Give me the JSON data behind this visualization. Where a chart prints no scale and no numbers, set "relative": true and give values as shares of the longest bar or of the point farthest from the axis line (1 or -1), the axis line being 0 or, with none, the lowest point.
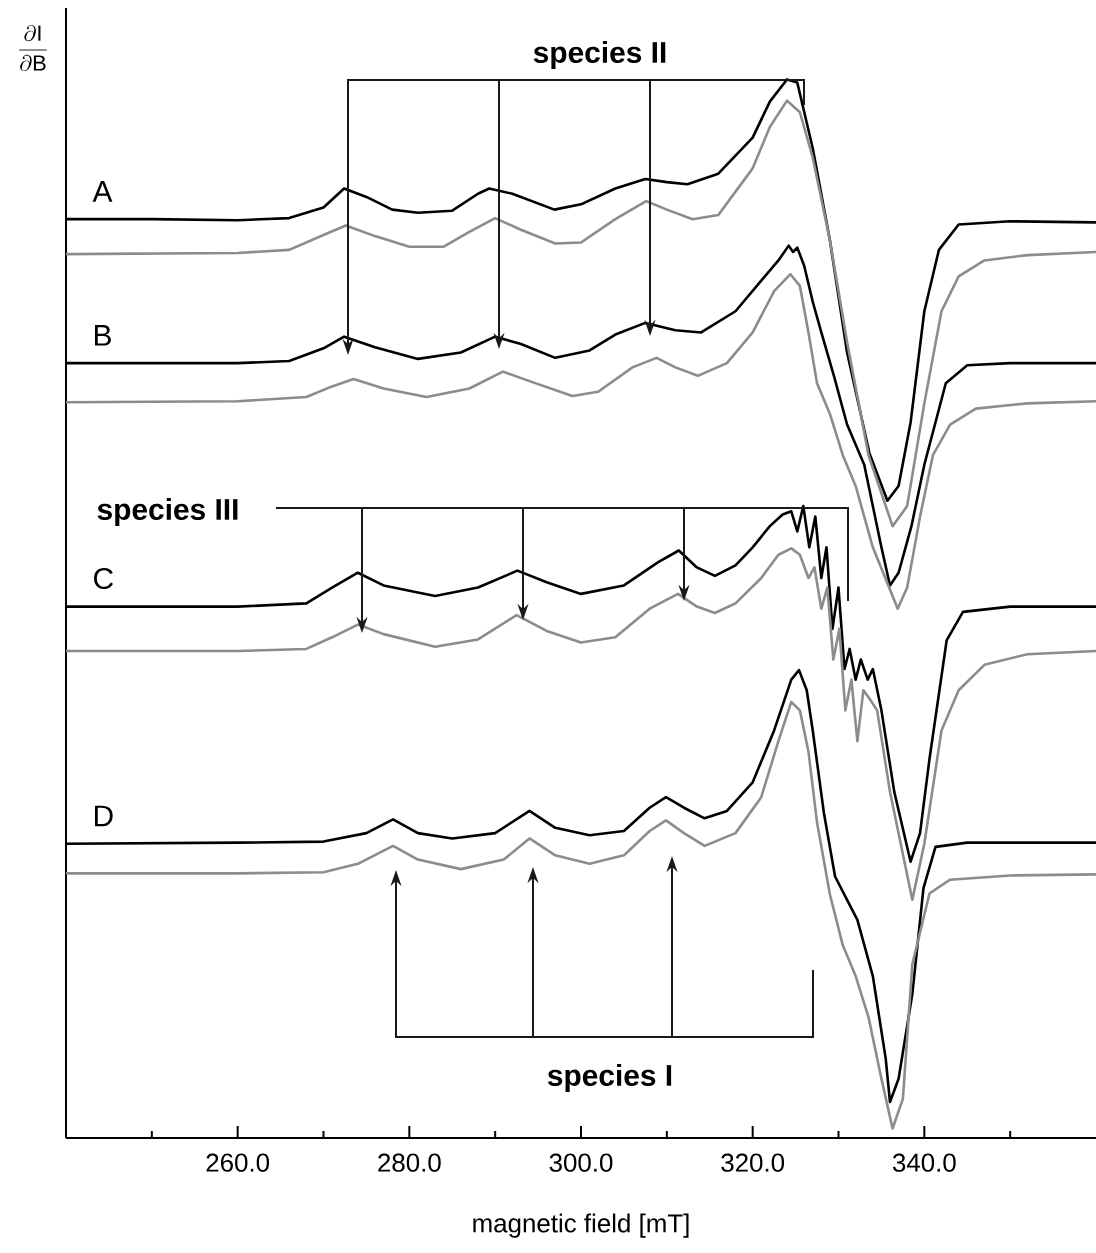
{
  "chart_data": {
    "type": "line",
    "relative": true,
    "xlabel": "magnetic field [mT]",
    "ylabel": "\\frac{\\partial\\mathrm{I}}{\\partial\\mathrm{B}}",
    "xlim": [
      240,
      360
    ],
    "xticks": [
      {
        "value": 250,
        "label": null
      },
      {
        "value": 260,
        "label": "260.0"
      },
      {
        "value": 270,
        "label": null
      },
      {
        "value": 280,
        "label": "280.0"
      },
      {
        "value": 290,
        "label": null
      },
      {
        "value": 300,
        "label": "300.0"
      },
      {
        "value": 310,
        "label": null
      },
      {
        "value": 320,
        "label": "320.0"
      },
      {
        "value": 330,
        "label": null
      },
      {
        "value": 340,
        "label": "340.0"
      },
      {
        "value": 350,
        "label": null
      }
    ],
    "series": [
      {
        "name": "A",
        "color": "#000000",
        "x": [
          240,
          250,
          260,
          266,
          270,
          272.4,
          275,
          278,
          281,
          285,
          288,
          289.3,
          292,
          296.9,
          300,
          304,
          307.5,
          310,
          312.4,
          316,
          320,
          322,
          324,
          325.2,
          327,
          329,
          331,
          333.6,
          335.7,
          337,
          338.4,
          340,
          341.7,
          344,
          350,
          360
        ],
        "values": [
          0.868,
          0.868,
          0.867,
          0.869,
          0.879,
          0.897,
          0.889,
          0.877,
          0.874,
          0.876,
          0.892,
          0.897,
          0.892,
          0.877,
          0.882,
          0.897,
          0.906,
          0.903,
          0.901,
          0.911,
          0.945,
          0.979,
          1.0,
          0.997,
          0.935,
          0.848,
          0.742,
          0.647,
          0.602,
          0.616,
          0.676,
          0.781,
          0.839,
          0.863,
          0.866,
          0.865
        ]
      },
      {
        "color": "#8c8c8c",
        "x": [
          240,
          260,
          266,
          270,
          272.6,
          276,
          280,
          284,
          287,
          290,
          293,
          297,
          300,
          304,
          307.6,
          310,
          313,
          316,
          320,
          322,
          324,
          325.5,
          327,
          329,
          331,
          333.5,
          336.3,
          338,
          340,
          342,
          344,
          347,
          352,
          360
        ],
        "values": [
          0.835,
          0.836,
          0.839,
          0.853,
          0.862,
          0.852,
          0.842,
          0.842,
          0.856,
          0.869,
          0.858,
          0.845,
          0.846,
          0.868,
          0.885,
          0.877,
          0.868,
          0.872,
          0.916,
          0.955,
          0.98,
          0.969,
          0.926,
          0.848,
          0.752,
          0.645,
          0.578,
          0.597,
          0.694,
          0.781,
          0.814,
          0.829,
          0.834,
          0.837
        ]
      },
      {
        "name": "B",
        "color": "#000000",
        "x": [
          240,
          260,
          266,
          270,
          272.4,
          276,
          281,
          286,
          290,
          293,
          297,
          301,
          304,
          307.5,
          311,
          314,
          318,
          321,
          323,
          324.2,
          324.7,
          325.2,
          326,
          327,
          328,
          329.5,
          331,
          333,
          335,
          336,
          337,
          338.5,
          340,
          342.5,
          345,
          350,
          360
        ],
        "values": [
          0.732,
          0.732,
          0.734,
          0.746,
          0.757,
          0.747,
          0.736,
          0.742,
          0.757,
          0.75,
          0.737,
          0.744,
          0.759,
          0.77,
          0.763,
          0.761,
          0.781,
          0.81,
          0.829,
          0.843,
          0.837,
          0.841,
          0.824,
          0.79,
          0.761,
          0.719,
          0.674,
          0.636,
          0.558,
          0.522,
          0.534,
          0.578,
          0.636,
          0.713,
          0.73,
          0.732,
          0.732
        ]
      },
      {
        "color": "#8c8c8c",
        "x": [
          240,
          260,
          268,
          271,
          273.5,
          277,
          282,
          287,
          290.9,
          294,
          299,
          302,
          306,
          308.8,
          311,
          313.6,
          317,
          320,
          322.5,
          324.4,
          325.5,
          326.5,
          327.5,
          329,
          330.5,
          332,
          334,
          336.9,
          338,
          339.5,
          341,
          343,
          346,
          352,
          360
        ],
        "values": [
          0.695,
          0.696,
          0.7,
          0.71,
          0.717,
          0.708,
          0.7,
          0.708,
          0.724,
          0.715,
          0.701,
          0.705,
          0.728,
          0.737,
          0.728,
          0.72,
          0.732,
          0.761,
          0.8,
          0.816,
          0.805,
          0.761,
          0.713,
          0.684,
          0.645,
          0.616,
          0.558,
          0.5,
          0.52,
          0.587,
          0.645,
          0.674,
          0.689,
          0.694,
          0.696
        ]
      },
      {
        "name": "C",
        "color": "#000000",
        "x": [
          240,
          260,
          268,
          271,
          274,
          277,
          283,
          288,
          292.6,
          296,
          300,
          305,
          309,
          311.4,
          313.5,
          315.6,
          318,
          320,
          322,
          323.5,
          324.5,
          325.2,
          325.9,
          326.6,
          327.3,
          328.0,
          328.6,
          329.3,
          330.0,
          330.7,
          331.3,
          332.0,
          332.6,
          333.4,
          334,
          335,
          336.5,
          338.4,
          339.5,
          340.6,
          342.6,
          344.5,
          350,
          360
        ],
        "values": [
          0.502,
          0.502,
          0.505,
          0.52,
          0.534,
          0.522,
          0.512,
          0.52,
          0.536,
          0.525,
          0.514,
          0.522,
          0.544,
          0.555,
          0.539,
          0.531,
          0.541,
          0.558,
          0.578,
          0.589,
          0.592,
          0.573,
          0.597,
          0.558,
          0.587,
          0.529,
          0.558,
          0.481,
          0.52,
          0.443,
          0.462,
          0.433,
          0.452,
          0.433,
          0.443,
          0.404,
          0.327,
          0.261,
          0.288,
          0.358,
          0.47,
          0.497,
          0.502,
          0.502
        ]
      },
      {
        "color": "#8c8c8c",
        "x": [
          240,
          260,
          268,
          271,
          274,
          277,
          283,
          288,
          292.5,
          296,
          300,
          304,
          308,
          311.3,
          313.5,
          315.6,
          318,
          321,
          323,
          324.5,
          325.5,
          326.5,
          327.2,
          328,
          328.7,
          329.4,
          330.1,
          330.8,
          331.5,
          332.2,
          332.9,
          333.7,
          334.5,
          336,
          338.6,
          340,
          342,
          344,
          347,
          352,
          360
        ],
        "values": [
          0.46,
          0.46,
          0.462,
          0.473,
          0.485,
          0.476,
          0.464,
          0.471,
          0.494,
          0.479,
          0.468,
          0.473,
          0.5,
          0.514,
          0.502,
          0.496,
          0.505,
          0.529,
          0.551,
          0.557,
          0.551,
          0.529,
          0.539,
          0.5,
          0.52,
          0.452,
          0.481,
          0.404,
          0.433,
          0.375,
          0.423,
          0.414,
          0.404,
          0.327,
          0.225,
          0.278,
          0.385,
          0.423,
          0.447,
          0.457,
          0.46
        ]
      },
      {
        "name": "D",
        "color": "#000000",
        "x": [
          240,
          260,
          270,
          275,
          278.1,
          281,
          285,
          290,
          294,
          297,
          301,
          305,
          308,
          309.9,
          312,
          314.4,
          317,
          320,
          322.5,
          324.5,
          325.4,
          326.3,
          327,
          328.3,
          329.6,
          331,
          332.2,
          334,
          335.5,
          336,
          337,
          338.6,
          339.9,
          341.3,
          345,
          360
        ],
        "values": [
          0.278,
          0.279,
          0.28,
          0.288,
          0.301,
          0.288,
          0.283,
          0.288,
          0.309,
          0.293,
          0.286,
          0.29,
          0.312,
          0.322,
          0.312,
          0.302,
          0.309,
          0.336,
          0.385,
          0.433,
          0.442,
          0.423,
          0.385,
          0.307,
          0.247,
          0.225,
          0.206,
          0.153,
          0.075,
          0.034,
          0.056,
          0.136,
          0.236,
          0.275,
          0.279,
          0.279
        ]
      },
      {
        "color": "#8c8c8c",
        "x": [
          240,
          260,
          270,
          274,
          278.1,
          281,
          286,
          291,
          294,
          297,
          301,
          305,
          308,
          309.9,
          312,
          314.4,
          318,
          321,
          323,
          324.5,
          325.5,
          326.5,
          327.5,
          329,
          330.5,
          332,
          333.5,
          335,
          336.3,
          337.5,
          338.6,
          340.6,
          343,
          350,
          360
        ],
        "values": [
          0.25,
          0.25,
          0.251,
          0.259,
          0.276,
          0.263,
          0.254,
          0.263,
          0.283,
          0.267,
          0.259,
          0.267,
          0.29,
          0.3,
          0.288,
          0.276,
          0.288,
          0.322,
          0.375,
          0.412,
          0.404,
          0.365,
          0.298,
          0.23,
          0.182,
          0.153,
          0.114,
          0.056,
          0.009,
          0.037,
          0.164,
          0.231,
          0.244,
          0.248,
          0.249
        ]
      }
    ],
    "annotations": [
      "species II",
      "species III",
      "species I"
    ]
  }
}
